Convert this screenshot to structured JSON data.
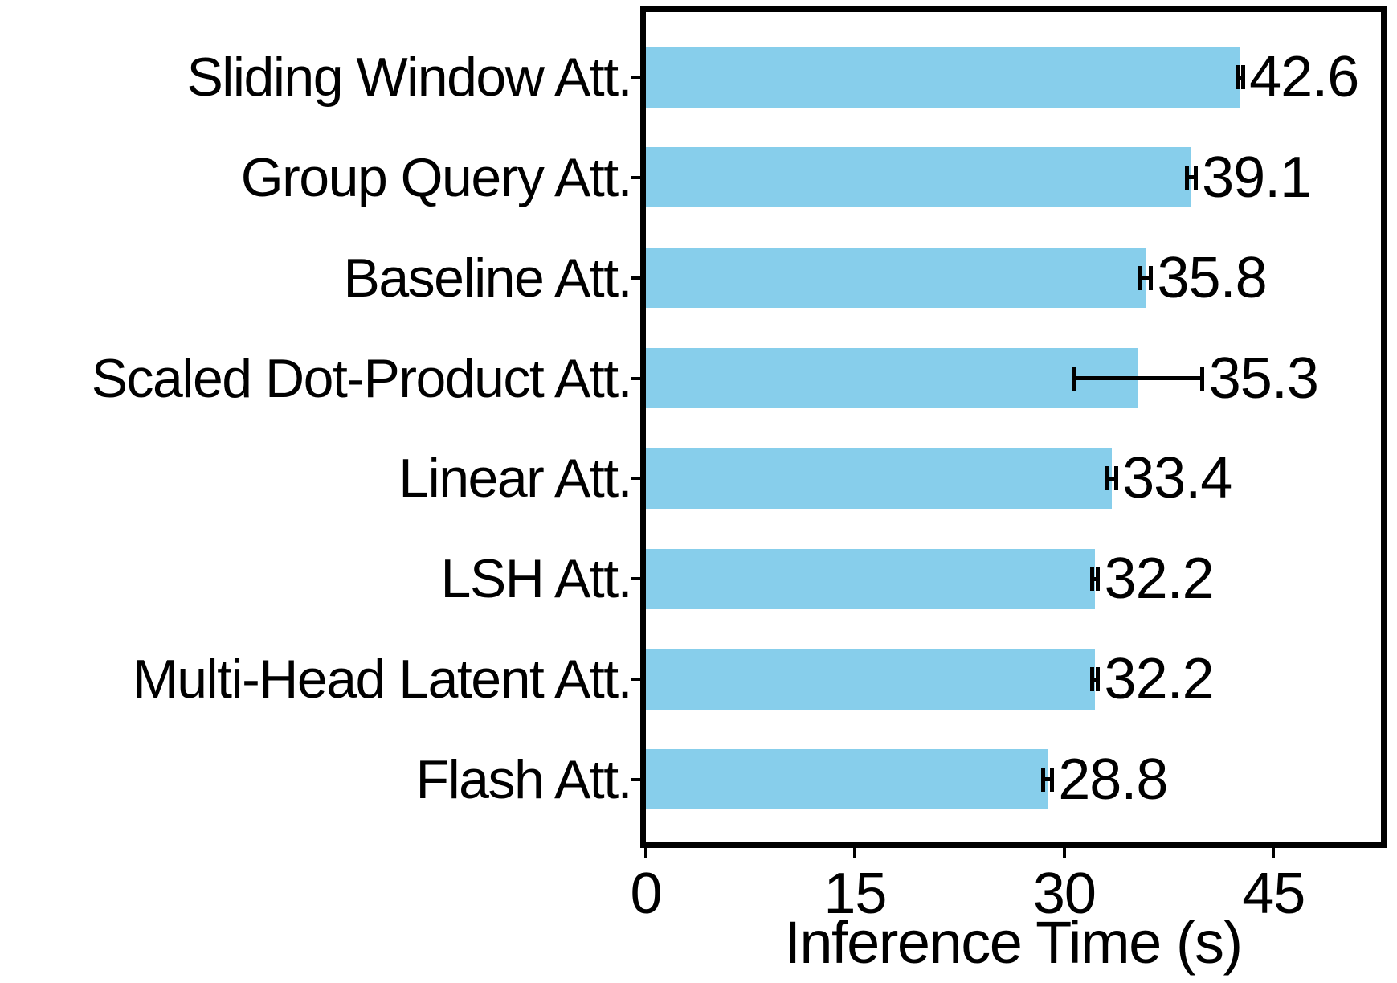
{
  "chart_data": {
    "type": "bar",
    "orientation": "horizontal",
    "title": "",
    "categories": [
      "Sliding Window Att.",
      "Group Query Att.",
      "Baseline Att.",
      "Scaled Dot-Product Att.",
      "Linear Att.",
      "LSH Att.",
      "Multi-Head Latent Att.",
      "Flash Att."
    ],
    "values": [
      42.6,
      39.1,
      35.8,
      35.3,
      33.4,
      32.2,
      32.2,
      28.8
    ],
    "errors": [
      0.2,
      0.3,
      0.4,
      4.6,
      0.3,
      0.2,
      0.2,
      0.3
    ],
    "value_labels": [
      "42.6",
      "39.1",
      "35.8",
      "35.3",
      "33.4",
      "32.2",
      "32.2",
      "28.8"
    ],
    "xlabel": "Inference Time (s)",
    "ylabel": "",
    "xlim": [
      0,
      52.7
    ],
    "xticks": [
      0,
      15,
      30,
      45
    ],
    "xtick_labels": [
      "0",
      "15",
      "30",
      "45"
    ],
    "grid": false,
    "legend": null,
    "bar_color": "#87CEEB",
    "axis_color": "#000000",
    "text_color": "#000000",
    "background_color": "#FFFFFF"
  }
}
